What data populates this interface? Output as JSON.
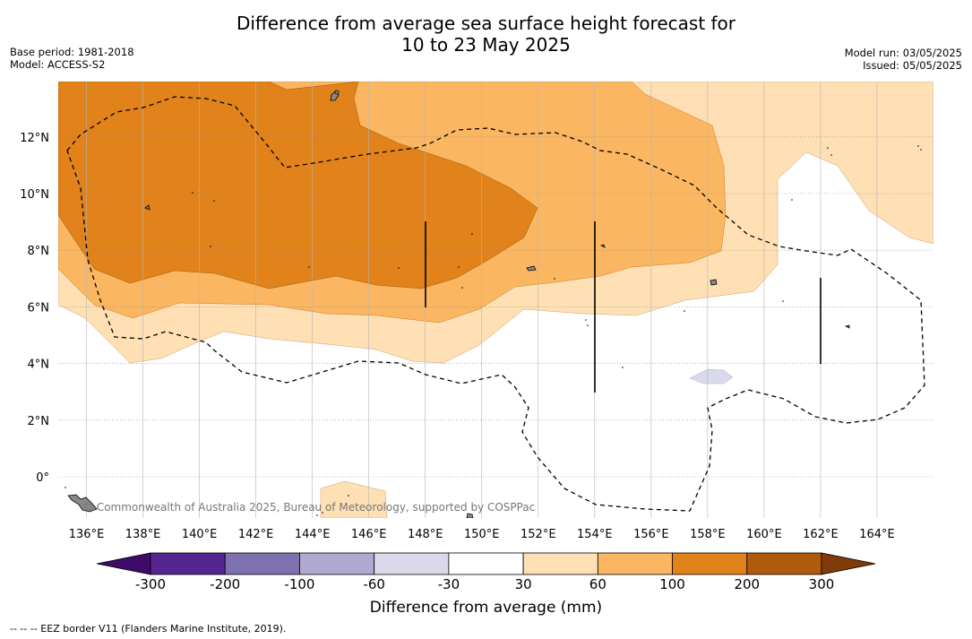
{
  "title_line1": "Difference from average sea surface height forecast for",
  "title_line2": "10 to 23 May 2025",
  "base_period": "Base period: 1981-2018",
  "model": "Model: ACCESS-S2",
  "model_run": "Model run: 03/05/2025",
  "issued": "Issued: 05/05/2025",
  "copyright": "© Commonwealth of Australia 2025, Bureau of Meteorology, supported by COSPPac",
  "x_ticks": [
    "136°E",
    "138°E",
    "140°E",
    "142°E",
    "144°E",
    "146°E",
    "148°E",
    "150°E",
    "152°E",
    "154°E",
    "156°E",
    "158°E",
    "160°E",
    "162°E",
    "164°E"
  ],
  "y_ticks": [
    "12°N",
    "10°N",
    "8°N",
    "6°N",
    "4°N",
    "2°N",
    "0°"
  ],
  "colorbar": {
    "title": "Difference from average (mm)",
    "labels": [
      "-300",
      "-200",
      "-100",
      "-60",
      "-30",
      "30",
      "60",
      "100",
      "200",
      "300"
    ],
    "colors": [
      "#3f0a68",
      "#562690",
      "#7f70ae",
      "#afaad2",
      "#d9d9eb",
      "#ffffff",
      "#fee0b4",
      "#fbb661",
      "#e1821a",
      "#b05a0c",
      "#7f3b08"
    ]
  },
  "footer": "--  --  -- EEZ border V11 (Flanders Marine Institute, 2019)."
}
